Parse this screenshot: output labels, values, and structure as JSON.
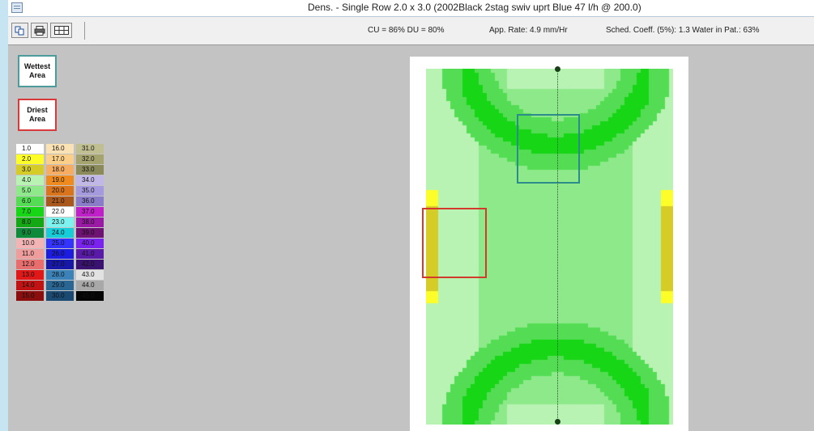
{
  "window": {
    "title": "Dens. - Single Row 2.0 x 3.0 (2002Black 2stag swiv uprt Blue 47 l/h @ 200.0)",
    "icon": "app-window-icon"
  },
  "toolbar": {
    "buttons": [
      {
        "name": "copy-button",
        "icon": "copy-icon"
      },
      {
        "name": "print-button",
        "icon": "printer-icon"
      },
      {
        "name": "grid-button",
        "icon": "grid-icon"
      }
    ],
    "stats": {
      "cu_du": "CU = 86%  DU = 80%",
      "app_rate": "App. Rate: 4.9  mm/Hr",
      "sched": "Sched. Coeff. (5%): 1.3  Water in Pat.: 63%"
    }
  },
  "areas": {
    "wettest_label": "Wettest Area",
    "driest_label": "Driest Area",
    "wettest_color": "#2c8c8a",
    "driest_color": "#d33a2b"
  },
  "legend": {
    "columns": [
      [
        {
          "label": "1.0",
          "color": "#ffffff"
        },
        {
          "label": "2.0",
          "color": "#fdfd2a"
        },
        {
          "label": "3.0",
          "color": "#d6cc28"
        },
        {
          "label": "4.0",
          "color": "#b8f3b4"
        },
        {
          "label": "5.0",
          "color": "#8ee98a"
        },
        {
          "label": "6.0",
          "color": "#54dd54"
        },
        {
          "label": "7.0",
          "color": "#16d616"
        },
        {
          "label": "8.0",
          "color": "#14a814"
        },
        {
          "label": "9.0",
          "color": "#0e8a3a"
        },
        {
          "label": "10.0",
          "color": "#f2b4b4"
        },
        {
          "label": "11.0",
          "color": "#ee9c9c"
        },
        {
          "label": "12.0",
          "color": "#e86e6e"
        },
        {
          "label": "13.0",
          "color": "#e01818"
        },
        {
          "label": "14.0",
          "color": "#c01414"
        },
        {
          "label": "15.0",
          "color": "#8a0e0e"
        }
      ],
      [
        {
          "label": "16.0",
          "color": "#fbe2b4"
        },
        {
          "label": "17.0",
          "color": "#fbcf88"
        },
        {
          "label": "18.0",
          "color": "#f6ad62"
        },
        {
          "label": "19.0",
          "color": "#ef8b1e"
        },
        {
          "label": "20.0",
          "color": "#d9731c"
        },
        {
          "label": "21.0",
          "color": "#a9571a"
        },
        {
          "label": "22.0",
          "color": "#ffffff"
        },
        {
          "label": "23.0",
          "color": "#7ef2ee"
        },
        {
          "label": "24.0",
          "color": "#16ccd8"
        },
        {
          "label": "25.0",
          "color": "#3434ff"
        },
        {
          "label": "26.0",
          "color": "#1c1ce0"
        },
        {
          "label": "27.0",
          "color": "#1818a8"
        },
        {
          "label": "28.0",
          "color": "#3a82b8"
        },
        {
          "label": "29.0",
          "color": "#2a6694"
        },
        {
          "label": "30.0",
          "color": "#1a4a72"
        }
      ],
      [
        {
          "label": "31.0",
          "color": "#bfbf92"
        },
        {
          "label": "32.0",
          "color": "#a6a46e"
        },
        {
          "label": "33.0",
          "color": "#8a8a5a"
        },
        {
          "label": "34.0",
          "color": "#c2b8e8"
        },
        {
          "label": "35.0",
          "color": "#a69ade"
        },
        {
          "label": "36.0",
          "color": "#8a7cc8"
        },
        {
          "label": "37.0",
          "color": "#c020c8"
        },
        {
          "label": "38.0",
          "color": "#9a1aa6"
        },
        {
          "label": "39.0",
          "color": "#6e1274"
        },
        {
          "label": "40.0",
          "color": "#7a22ee"
        },
        {
          "label": "41.0",
          "color": "#5a1aa8"
        },
        {
          "label": "42.0",
          "color": "#3a1270"
        },
        {
          "label": "43.0",
          "color": "#e2e2e2"
        },
        {
          "label": "44.0",
          "color": "#a8a8a8"
        },
        {
          "label": "45.0",
          "color": "#050505"
        }
      ]
    ]
  }
}
